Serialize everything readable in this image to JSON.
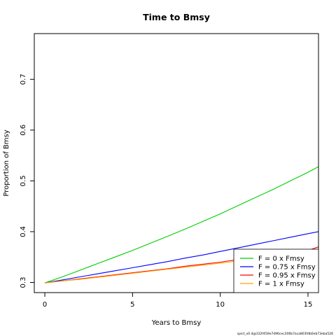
{
  "chart_data": {
    "type": "line",
    "title": "Time to Bmsy",
    "xlabel": "Years to Bmsy",
    "ylabel": "Proportion of Bmsy",
    "xlim": [
      -0.6,
      15.6
    ],
    "ylim": [
      0.28,
      0.79
    ],
    "xticks": [
      0,
      5,
      10,
      15
    ],
    "yticks": [
      0.3,
      0.4,
      0.5,
      0.6,
      0.7
    ],
    "grid": false,
    "legend_position": "bottom-right",
    "x": [
      0,
      1,
      2,
      3,
      4,
      5,
      6,
      7,
      8,
      9,
      10,
      11,
      12,
      13,
      14,
      15,
      15.6
    ],
    "series": [
      {
        "name": "F = 0 x Fmsy",
        "color": "#00cd00",
        "values": [
          0.299,
          0.311,
          0.324,
          0.337,
          0.35,
          0.363,
          0.377,
          0.391,
          0.405,
          0.42,
          0.435,
          0.451,
          0.467,
          0.483,
          0.5,
          0.517,
          0.528
        ]
      },
      {
        "name": "F = 0.75 x Fmsy",
        "color": "#0000ff",
        "values": [
          0.299,
          0.305,
          0.311,
          0.317,
          0.323,
          0.329,
          0.335,
          0.341,
          0.348,
          0.354,
          0.361,
          0.368,
          0.375,
          0.382,
          0.389,
          0.396,
          0.4
        ]
      },
      {
        "name": "F = 0.95 x Fmsy",
        "color": "#ff0000",
        "values": [
          0.299,
          0.303,
          0.307,
          0.311,
          0.315,
          0.319,
          0.323,
          0.327,
          0.332,
          0.336,
          0.34,
          0.345,
          0.349,
          0.354,
          0.358,
          0.363,
          0.37
        ]
      },
      {
        "name": "F = 1 x Fmsy",
        "color": "#ffa500",
        "values": [
          0.299,
          0.303,
          0.306,
          0.31,
          0.314,
          0.318,
          0.322,
          0.326,
          0.33,
          0.334,
          0.338,
          0.342,
          0.346,
          0.35,
          0.354,
          0.358,
          0.361
        ]
      }
    ],
    "footnote": "spict_v0.4@332f459e7d96cec206b7aca803fdb0eb73eba526"
  }
}
